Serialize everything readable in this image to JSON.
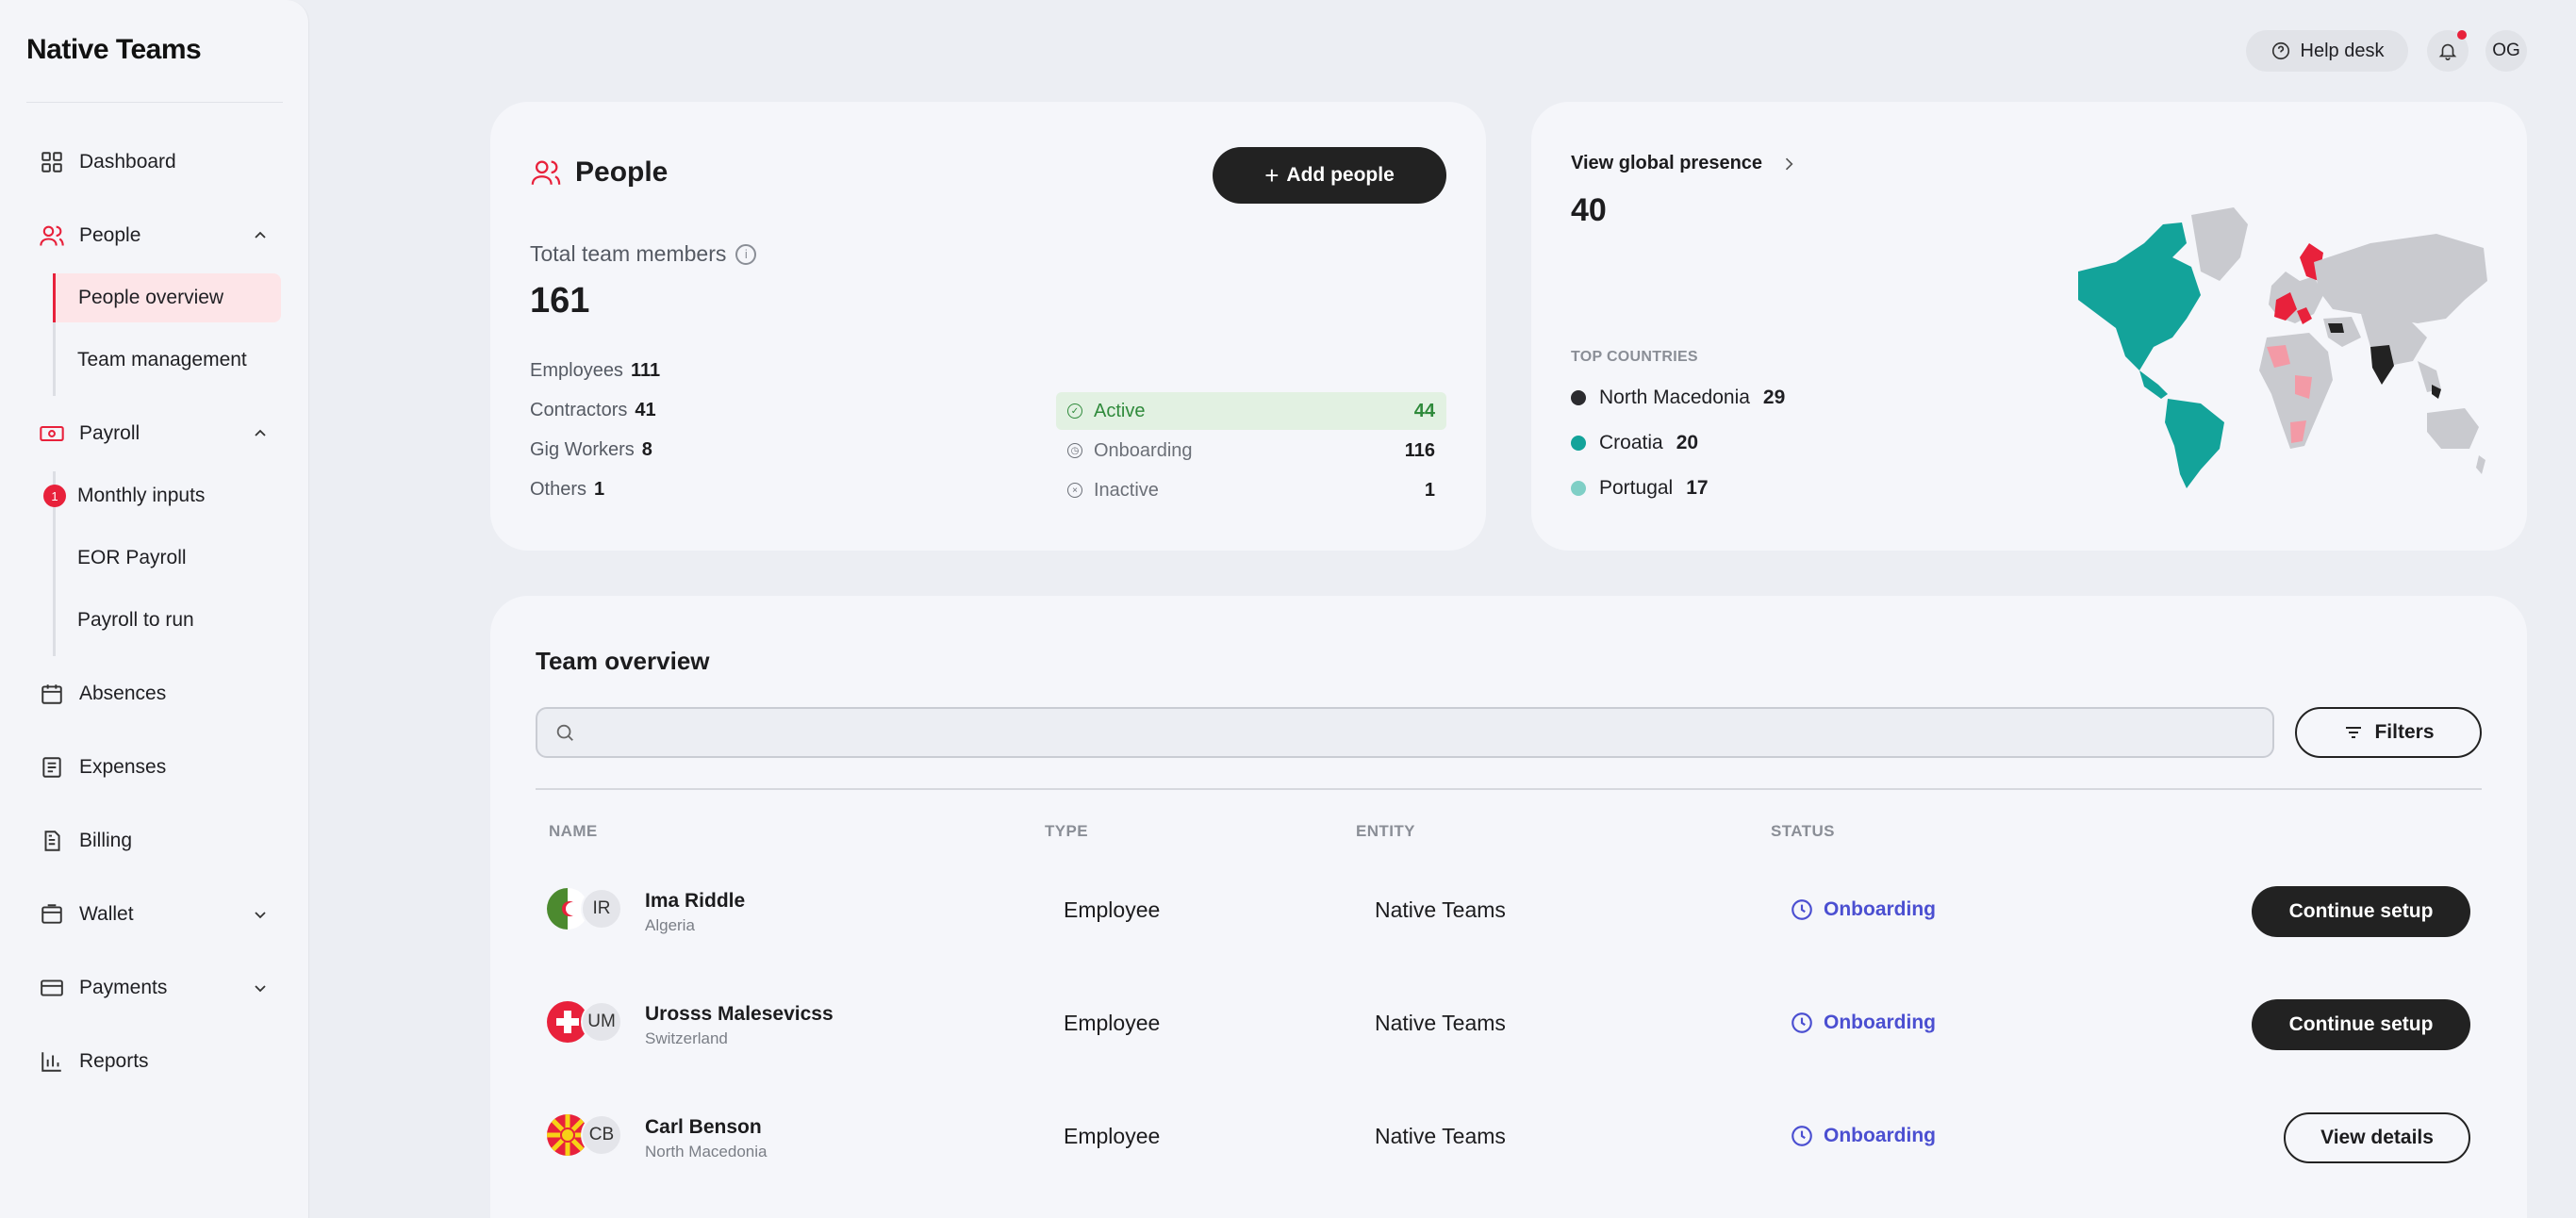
{
  "app": {
    "logo": "Native Teams"
  },
  "sidebar": {
    "dashboard": "Dashboard",
    "people": "People",
    "people_overview": "People overview",
    "team_management": "Team management",
    "payroll": "Payroll",
    "monthly_inputs": "Monthly inputs",
    "monthly_inputs_badge": "1",
    "eor_payroll": "EOR Payroll",
    "payroll_to_run": "Payroll to run",
    "absences": "Absences",
    "expenses": "Expenses",
    "billing": "Billing",
    "wallet": "Wallet",
    "payments": "Payments",
    "reports": "Reports"
  },
  "topbar": {
    "help_desk": "Help desk",
    "user_initials": "OG"
  },
  "people_card": {
    "title": "People",
    "add_button": "Add people",
    "total_label": "Total team members",
    "total_value": "161",
    "stats": [
      {
        "label": "Employees",
        "value": "111"
      },
      {
        "label": "Contractors",
        "value": "41"
      },
      {
        "label": "Gig Workers",
        "value": "8"
      },
      {
        "label": "Others",
        "value": "1"
      }
    ],
    "statuses": [
      {
        "label": "Active",
        "value": "44"
      },
      {
        "label": "Onboarding",
        "value": "116"
      },
      {
        "label": "Inactive",
        "value": "1"
      }
    ]
  },
  "global_card": {
    "title": "View global presence",
    "value": "40",
    "top_countries_label": "TOP COUNTRIES",
    "countries": [
      {
        "name": "North Macedonia",
        "count": "29",
        "color": "#2b2b2f"
      },
      {
        "name": "Croatia",
        "count": "20",
        "color": "#13a39a"
      },
      {
        "name": "Portugal",
        "count": "17",
        "color": "#7fcfc6"
      }
    ]
  },
  "team_overview": {
    "title": "Team overview",
    "search_placeholder": "",
    "filters_button": "Filters",
    "columns": {
      "name": "NAME",
      "type": "TYPE",
      "entity": "ENTITY",
      "status": "STATUS"
    },
    "rows": [
      {
        "initials": "IR",
        "name": "Ima Riddle",
        "country": "Algeria",
        "type": "Employee",
        "entity": "Native Teams",
        "status": "Onboarding",
        "action": "Continue setup"
      },
      {
        "initials": "UM",
        "name": "Urosss Malesevicss",
        "country": "Switzerland",
        "type": "Employee",
        "entity": "Native Teams",
        "status": "Onboarding",
        "action": "Continue setup"
      },
      {
        "initials": "CB",
        "name": "Carl Benson",
        "country": "North Macedonia",
        "type": "Employee",
        "entity": "Native Teams",
        "status": "Onboarding",
        "action": "View details"
      }
    ]
  },
  "colors": {
    "accent": "#e8213b",
    "onboarding": "#4b4fd1",
    "active": "#2f8a3b"
  }
}
